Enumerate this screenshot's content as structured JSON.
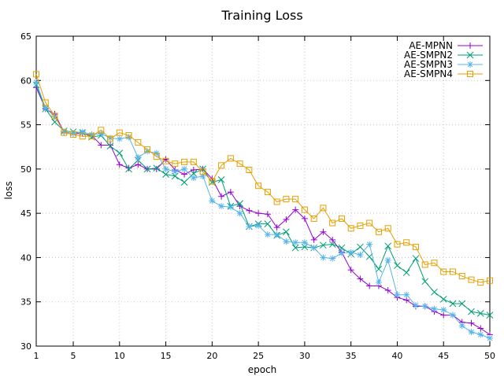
{
  "chart_data": {
    "type": "line",
    "title": "Training Loss",
    "xlabel": "epoch",
    "ylabel": "loss",
    "xlim": [
      1,
      50
    ],
    "ylim": [
      30,
      65
    ],
    "xticks": [
      1,
      5,
      10,
      15,
      20,
      25,
      30,
      35,
      40,
      45,
      50
    ],
    "yticks": [
      30,
      35,
      40,
      45,
      50,
      55,
      60,
      65
    ],
    "grid": true,
    "legend_position": "top-right",
    "x": [
      1,
      2,
      3,
      4,
      5,
      6,
      7,
      8,
      9,
      10,
      11,
      12,
      13,
      14,
      15,
      16,
      17,
      18,
      19,
      20,
      21,
      22,
      23,
      24,
      25,
      26,
      27,
      28,
      29,
      30,
      31,
      32,
      33,
      34,
      35,
      36,
      37,
      38,
      39,
      40,
      41,
      42,
      43,
      44,
      45,
      46,
      47,
      48,
      49,
      50
    ],
    "series": [
      {
        "name": "AE-MPNN",
        "color": "#9400d3",
        "marker": "plus",
        "values": [
          59.2,
          56.8,
          56.2,
          54.2,
          54.0,
          54.0,
          53.8,
          52.7,
          52.7,
          50.5,
          50.1,
          50.5,
          50.0,
          50.0,
          51.1,
          49.9,
          49.4,
          49.9,
          50.0,
          48.9,
          46.9,
          47.4,
          45.8,
          45.3,
          45.0,
          44.9,
          43.4,
          44.3,
          45.4,
          44.4,
          42.0,
          42.9,
          42.0,
          40.6,
          38.6,
          37.6,
          36.8,
          36.8,
          36.3,
          35.5,
          35.2,
          34.5,
          34.5,
          33.9,
          33.5,
          33.5,
          32.7,
          32.6,
          32.0,
          31.3
        ]
      },
      {
        "name": "AE-SMPN2",
        "color": "#009e73",
        "marker": "cross",
        "values": [
          59.5,
          56.8,
          55.3,
          54.3,
          54.2,
          54.1,
          53.6,
          53.8,
          52.6,
          51.8,
          50.0,
          51.0,
          50.0,
          50.1,
          49.4,
          49.2,
          48.5,
          49.5,
          50.0,
          48.5,
          48.8,
          45.8,
          46.1,
          43.5,
          43.8,
          43.8,
          42.5,
          42.9,
          41.1,
          41.2,
          41.1,
          41.4,
          41.5,
          41.1,
          40.4,
          41.2,
          40.1,
          38.7,
          41.3,
          39.1,
          38.3,
          39.9,
          37.3,
          36.1,
          35.3,
          34.8,
          34.8,
          33.9,
          33.7,
          33.5
        ]
      },
      {
        "name": "AE-SMPN3",
        "color": "#56b4e9",
        "marker": "star",
        "values": [
          59.8,
          56.9,
          55.9,
          54.2,
          54.0,
          54.2,
          53.9,
          54.0,
          53.5,
          53.4,
          53.6,
          51.3,
          52.0,
          51.8,
          50.0,
          49.7,
          50.0,
          49.0,
          49.2,
          46.4,
          45.8,
          45.7,
          45.0,
          43.5,
          43.6,
          42.6,
          42.6,
          41.8,
          41.7,
          41.7,
          41.1,
          40.0,
          39.9,
          40.5,
          40.6,
          40.3,
          41.5,
          37.2,
          39.7,
          35.8,
          35.8,
          34.6,
          34.5,
          34.2,
          34.1,
          33.5,
          32.3,
          31.6,
          31.3,
          30.9
        ]
      },
      {
        "name": "AE-SMPN4",
        "color": "#e69f00",
        "marker": "square",
        "values": [
          60.7,
          57.5,
          56.0,
          54.1,
          53.9,
          53.7,
          53.7,
          54.4,
          53.4,
          54.1,
          53.8,
          53.0,
          52.2,
          51.4,
          50.9,
          50.6,
          50.8,
          50.8,
          49.7,
          48.6,
          50.4,
          51.2,
          50.6,
          49.9,
          48.1,
          47.4,
          46.3,
          46.6,
          46.6,
          45.4,
          44.4,
          45.6,
          43.9,
          44.4,
          43.3,
          43.6,
          43.9,
          42.9,
          43.3,
          41.5,
          41.7,
          41.2,
          39.2,
          39.4,
          38.4,
          38.4,
          37.9,
          37.5,
          37.2,
          37.4
        ]
      }
    ]
  }
}
